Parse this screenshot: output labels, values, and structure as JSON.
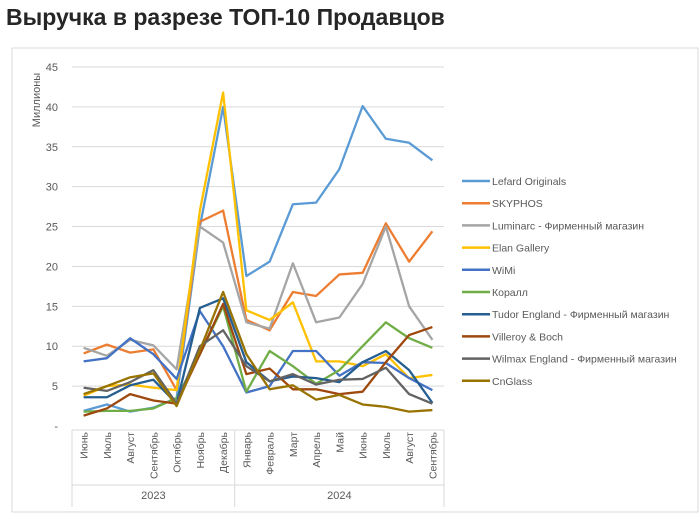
{
  "title": "Выручка в разрезе ТОП-10 Продавцов",
  "chart_data": {
    "type": "line",
    "title": "Выручка в разрезе ТОП-10 Продавцов",
    "ylabel": "Миллионы",
    "xlabel": "",
    "ylim": [
      0,
      45
    ],
    "yticks": [
      "-",
      "5",
      "10",
      "15",
      "20",
      "25",
      "30",
      "35",
      "40",
      "45"
    ],
    "grid": true,
    "legend": "right",
    "categories": [
      "Июнь",
      "Июль",
      "Август",
      "Сентябрь",
      "Октябрь",
      "Ноябрь",
      "Декабрь",
      "Январь",
      "Февраль",
      "Март",
      "Апрель",
      "Май",
      "Июнь",
      "Июль",
      "Август",
      "Сентябрь"
    ],
    "groups": [
      {
        "label": "2023",
        "count": 7
      },
      {
        "label": "2024",
        "count": 9
      }
    ],
    "series": [
      {
        "name": "Lefard Originals",
        "color": "#5B9BD5",
        "values": [
          1.9,
          2.7,
          1.8,
          2.3,
          3.5,
          25,
          40,
          18.8,
          20.6,
          27.8,
          28,
          32.2,
          40.1,
          36,
          35.5,
          33.3
        ]
      },
      {
        "name": "SKYPHOS",
        "color": "#ED7D31",
        "values": [
          9.1,
          10.2,
          9.2,
          9.6,
          4.5,
          25.6,
          27,
          13.3,
          12,
          16.8,
          16.3,
          19,
          19.2,
          25.4,
          20.6,
          24.4
        ]
      },
      {
        "name": "Luminarc - Фирменный магазин",
        "color": "#A5A5A5",
        "values": [
          9.8,
          8.8,
          10.8,
          10.1,
          7.1,
          25,
          23,
          13,
          12.2,
          20.4,
          13,
          13.6,
          17.8,
          25,
          15,
          10.8
        ]
      },
      {
        "name": "Elan Gallery",
        "color": "#FFC000",
        "values": [
          3.8,
          5,
          5.2,
          4.8,
          4.5,
          27,
          41.8,
          14.5,
          13.3,
          15.5,
          8.1,
          8.1,
          7.5,
          9,
          6,
          6.4
        ]
      },
      {
        "name": "WiMi",
        "color": "#4472C4",
        "values": [
          8.1,
          8.5,
          11,
          9,
          5.9,
          14.4,
          10,
          4.2,
          5,
          9.4,
          9.4,
          6.3,
          8,
          7.9,
          6,
          4.5
        ]
      },
      {
        "name": "Коралл",
        "color": "#70AD47",
        "values": [
          1.8,
          1.9,
          1.9,
          2.2,
          3.5,
          9,
          15,
          4.3,
          9.4,
          7.5,
          5.3,
          7,
          10,
          13,
          11,
          9.8
        ]
      },
      {
        "name": "Tudor England - Фирменный магазин",
        "color": "#255E91",
        "values": [
          3.6,
          3.6,
          5.1,
          5.8,
          2.8,
          14.8,
          16,
          8,
          5.6,
          6.2,
          6,
          5.5,
          8,
          9.4,
          7,
          2.9
        ]
      },
      {
        "name": "Villeroy & Boch",
        "color": "#9E480E",
        "values": [
          1.3,
          2.2,
          4,
          3.2,
          2.8,
          9,
          15.3,
          6.5,
          7.2,
          4.6,
          4.6,
          4,
          4.3,
          8,
          11.4,
          12.4
        ]
      },
      {
        "name": "Wilmax England - Фирменный магазин",
        "color": "#636363",
        "values": [
          4.8,
          4.4,
          5.5,
          7,
          2.8,
          10,
          12,
          7.5,
          5.6,
          6.5,
          5.2,
          5.8,
          5.9,
          7.3,
          4,
          2.8
        ]
      },
      {
        "name": "CnGlass",
        "color": "#997300",
        "values": [
          4,
          5,
          6.1,
          6.6,
          2.5,
          9.5,
          16.8,
          9,
          4.6,
          5.1,
          3.3,
          3.9,
          2.7,
          2.4,
          1.8,
          2
        ]
      }
    ]
  }
}
